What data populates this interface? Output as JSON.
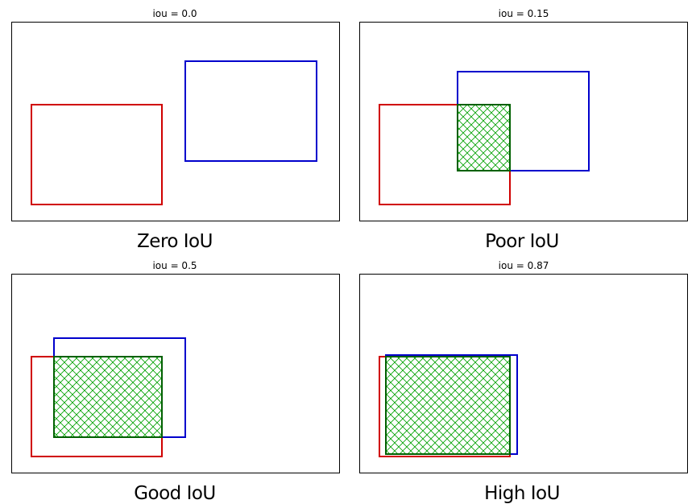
{
  "colors": {
    "box_a": "#d00000",
    "box_b": "#0000cc",
    "intersection": "#006000",
    "hatch": "#00a000",
    "frame": "#000000",
    "background": "#ffffff"
  },
  "panels": [
    {
      "title": "iou = 0.0",
      "caption": "Zero IoU"
    },
    {
      "title": "iou = 0.15",
      "caption": "Poor IoU"
    },
    {
      "title": "iou = 0.5",
      "caption": "Good IoU"
    },
    {
      "title": "iou = 0.87",
      "caption": "High IoU"
    }
  ]
}
